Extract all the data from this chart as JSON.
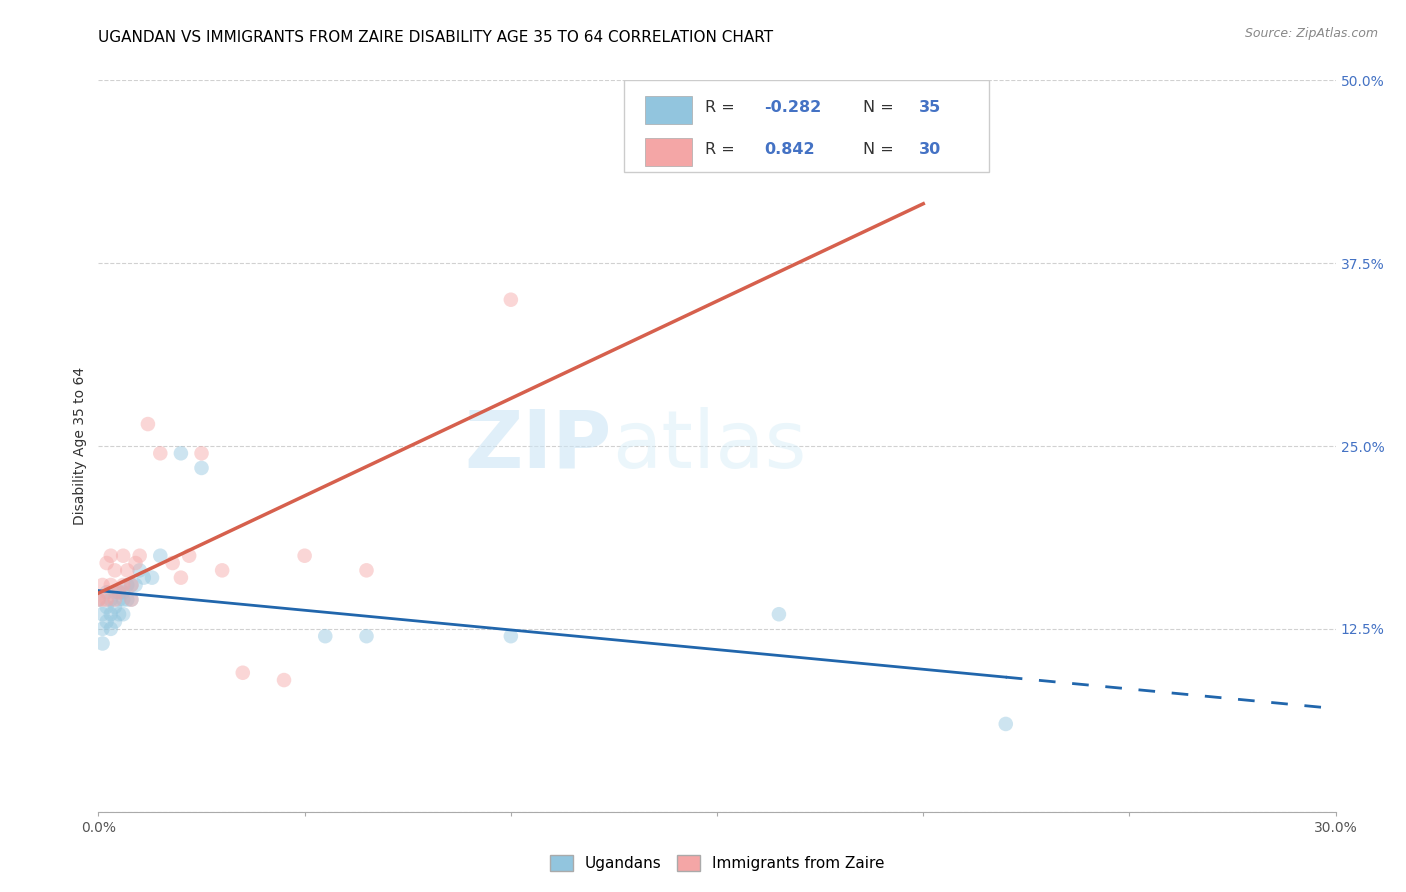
{
  "title": "UGANDAN VS IMMIGRANTS FROM ZAIRE DISABILITY AGE 35 TO 64 CORRELATION CHART",
  "source": "Source: ZipAtlas.com",
  "ylabel": "Disability Age 35 to 64",
  "xlim": [
    0.0,
    0.3
  ],
  "ylim": [
    0.0,
    0.5
  ],
  "xticks_major": [
    0.0,
    0.05,
    0.1,
    0.15,
    0.2,
    0.25,
    0.3
  ],
  "yticks": [
    0.0,
    0.125,
    0.25,
    0.375,
    0.5
  ],
  "ytick_labels": [
    "",
    "12.5%",
    "25.0%",
    "37.5%",
    "50.0%"
  ],
  "blue_color": "#92c5de",
  "pink_color": "#f4a6a6",
  "blue_line_color": "#2166ac",
  "pink_line_color": "#d6604d",
  "watermark_zip": "ZIP",
  "watermark_atlas": "atlas",
  "blue_label": "Ugandans",
  "pink_label": "Immigrants from Zaire",
  "r_blue": "-0.282",
  "n_blue": "35",
  "r_pink": "0.842",
  "n_pink": "30",
  "blue_x": [
    0.0,
    0.001,
    0.001,
    0.001,
    0.002,
    0.002,
    0.002,
    0.003,
    0.003,
    0.003,
    0.004,
    0.004,
    0.004,
    0.005,
    0.005,
    0.005,
    0.006,
    0.006,
    0.006,
    0.007,
    0.007,
    0.008,
    0.008,
    0.009,
    0.01,
    0.011,
    0.013,
    0.015,
    0.02,
    0.025,
    0.055,
    0.065,
    0.1,
    0.165,
    0.22
  ],
  "blue_y": [
    0.145,
    0.135,
    0.125,
    0.115,
    0.15,
    0.14,
    0.13,
    0.145,
    0.135,
    0.125,
    0.15,
    0.14,
    0.13,
    0.15,
    0.145,
    0.135,
    0.15,
    0.145,
    0.135,
    0.155,
    0.145,
    0.155,
    0.145,
    0.155,
    0.165,
    0.16,
    0.16,
    0.175,
    0.245,
    0.235,
    0.12,
    0.12,
    0.12,
    0.135,
    0.06
  ],
  "pink_x": [
    0.0,
    0.001,
    0.001,
    0.002,
    0.002,
    0.003,
    0.003,
    0.004,
    0.004,
    0.005,
    0.006,
    0.006,
    0.007,
    0.008,
    0.008,
    0.009,
    0.01,
    0.012,
    0.015,
    0.018,
    0.02,
    0.022,
    0.025,
    0.03,
    0.035,
    0.045,
    0.05,
    0.065,
    0.1,
    0.2
  ],
  "pink_y": [
    0.145,
    0.155,
    0.145,
    0.17,
    0.145,
    0.175,
    0.155,
    0.165,
    0.145,
    0.15,
    0.175,
    0.155,
    0.165,
    0.155,
    0.145,
    0.17,
    0.175,
    0.265,
    0.245,
    0.17,
    0.16,
    0.175,
    0.245,
    0.165,
    0.095,
    0.09,
    0.175,
    0.165,
    0.35,
    0.445
  ],
  "marker_size": 110,
  "marker_alpha": 0.45
}
